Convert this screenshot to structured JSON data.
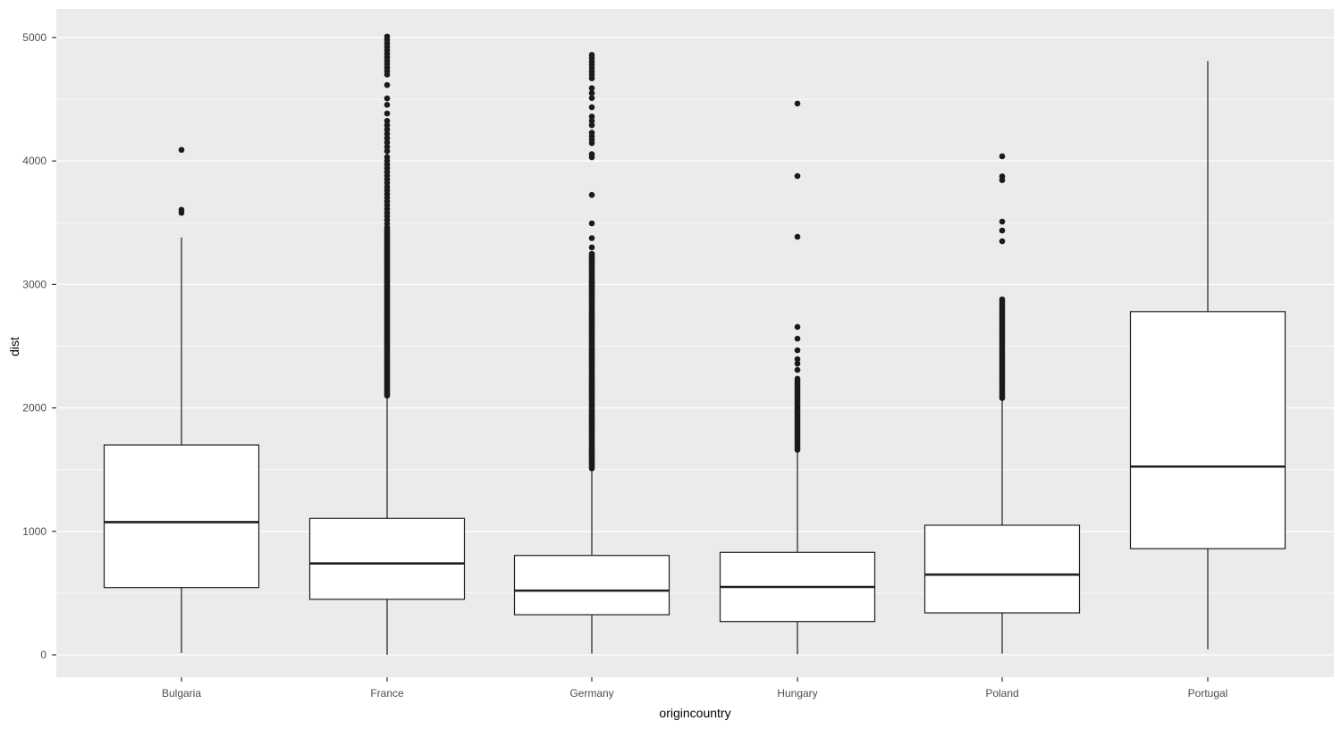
{
  "figure": {
    "background": "#FFFFFF",
    "panel_background": "#EBEBEB",
    "grid_color": "#FFFFFF",
    "box_fill": "#FFFFFF",
    "box_stroke": "#1F1F1F",
    "outlier_color": "#1A1A1A",
    "tick_mark_color": "#333333",
    "tick_label_color": "#4D4D4D",
    "axis_title_color": "#000000"
  },
  "chart_data": {
    "type": "boxplot",
    "title": "",
    "xlabel": "origincountry",
    "ylabel": "dist",
    "categories": [
      "Bulgaria",
      "France",
      "Germany",
      "Hungary",
      "Poland",
      "Portugal"
    ],
    "y_axis": {
      "ticks": [
        0,
        1000,
        2000,
        3000,
        4000,
        5000
      ],
      "tick_labels": [
        "0",
        "1000",
        "2000",
        "3000",
        "4000",
        "5000"
      ],
      "minor_ticks": [
        500,
        1500,
        2500,
        3500,
        4500
      ],
      "range": [
        -180,
        5230
      ]
    },
    "legend": "none",
    "grid": {
      "major": true,
      "minor": true
    },
    "series": [
      {
        "category": "Bulgaria",
        "whisker_low": 15,
        "q1": 545,
        "median": 1075,
        "q3": 1700,
        "whisker_high": 3380,
        "outliers": [
          3580,
          3605,
          4090
        ]
      },
      {
        "category": "France",
        "whisker_low": 0,
        "q1": 450,
        "median": 740,
        "q3": 1105,
        "whisker_high": 2090,
        "outliers": [
          {
            "from": 2100,
            "to": 3450,
            "step": 12
          },
          {
            "from": 3462,
            "to": 4050,
            "step": 30
          },
          {
            "from": 4080,
            "to": 4350,
            "step": 35
          },
          4385,
          4455,
          4507,
          4615,
          {
            "from": 4700,
            "to": 5010,
            "step": 28
          }
        ]
      },
      {
        "category": "Germany",
        "whisker_low": 10,
        "q1": 325,
        "median": 520,
        "q3": 805,
        "whisker_high": 1500,
        "outliers": [
          {
            "from": 1510,
            "to": 3255,
            "step": 11
          },
          3300,
          3375,
          3495,
          3725,
          4030,
          4055,
          {
            "from": 4145,
            "to": 4230,
            "step": 28
          },
          {
            "from": 4290,
            "to": 4365,
            "step": 35
          },
          4435,
          {
            "from": 4510,
            "to": 4595,
            "step": 40
          },
          {
            "from": 4670,
            "to": 4860,
            "step": 27
          }
        ]
      },
      {
        "category": "Hungary",
        "whisker_low": 5,
        "q1": 270,
        "median": 550,
        "q3": 830,
        "whisker_high": 1650,
        "outliers": [
          {
            "from": 1660,
            "to": 2245,
            "step": 16
          },
          2308,
          2359,
          2395,
          2467,
          2561,
          2656,
          3386,
          3878,
          4465
        ]
      },
      {
        "category": "Poland",
        "whisker_low": 10,
        "q1": 340,
        "median": 650,
        "q3": 1050,
        "whisker_high": 2070,
        "outliers": [
          {
            "from": 2080,
            "to": 2880,
            "step": 17
          },
          3350,
          3437,
          3509,
          3845,
          3875,
          4038
        ]
      },
      {
        "category": "Portugal",
        "whisker_low": 45,
        "q1": 860,
        "median": 1525,
        "q3": 2780,
        "whisker_high": 4810,
        "outliers": []
      }
    ]
  }
}
